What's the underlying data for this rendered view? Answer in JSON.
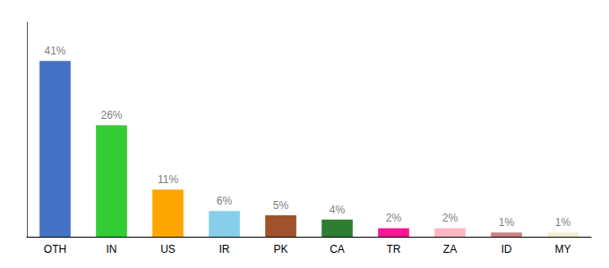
{
  "chart_data": {
    "type": "bar",
    "categories": [
      "OTH",
      "IN",
      "US",
      "IR",
      "PK",
      "CA",
      "TR",
      "ZA",
      "ID",
      "MY"
    ],
    "values": [
      41,
      26,
      11,
      6,
      5,
      4,
      2,
      2,
      1,
      1
    ],
    "value_labels": [
      "41%",
      "26%",
      "11%",
      "6%",
      "5%",
      "4%",
      "2%",
      "2%",
      "1%",
      "1%"
    ],
    "colors": [
      "#4472C4",
      "#33CC33",
      "#FFA500",
      "#87CEEB",
      "#A0522D",
      "#2E7D32",
      "#FF1493",
      "#FFB6C1",
      "#CD8080",
      "#F0EDD0"
    ],
    "ylim": [
      0,
      50
    ],
    "grid": false,
    "data_labels": true,
    "tick_labels": "x"
  }
}
